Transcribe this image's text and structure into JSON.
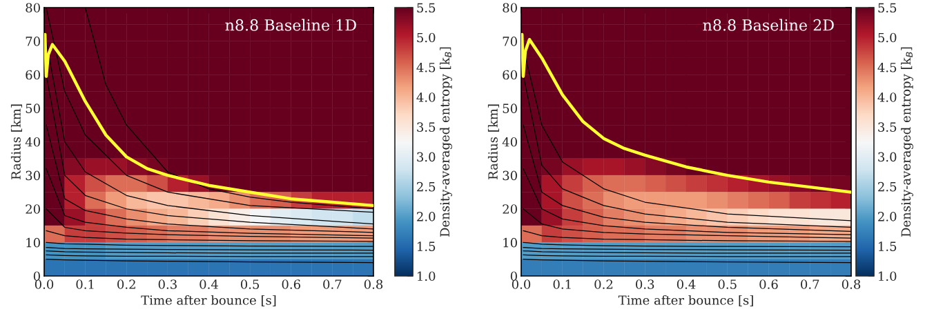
{
  "chart_data": [
    {
      "type": "heatmap",
      "title": "n8.8 Baseline 1D",
      "xlabel": "Time after bounce [s]",
      "ylabel": "Radius [km]",
      "clabel": "Density-averaged entropy [k$_{B}$]",
      "x": [
        0.025,
        0.075,
        0.125,
        0.175,
        0.225,
        0.275,
        0.325,
        0.375,
        0.425,
        0.475,
        0.525,
        0.575,
        0.625,
        0.675,
        0.725,
        0.775
      ],
      "y": [
        77.5,
        72.5,
        67.5,
        62.5,
        57.5,
        52.5,
        47.5,
        42.5,
        37.5,
        32.5,
        27.5,
        22.5,
        17.5,
        12.5,
        7.5,
        2.5
      ],
      "cells": [
        [
          5.5,
          5.5,
          5.5,
          5.5,
          5.5,
          5.5,
          5.5,
          5.5,
          5.5,
          5.5,
          5.5,
          5.5,
          5.5,
          5.5,
          5.5,
          5.5
        ],
        [
          5.5,
          5.5,
          5.5,
          5.5,
          5.5,
          5.5,
          5.5,
          5.5,
          5.5,
          5.5,
          5.5,
          5.5,
          5.5,
          5.5,
          5.5,
          5.5
        ],
        [
          5.5,
          5.5,
          5.5,
          5.5,
          5.5,
          5.5,
          5.5,
          5.5,
          5.5,
          5.5,
          5.5,
          5.5,
          5.5,
          5.5,
          5.5,
          5.5
        ],
        [
          5.5,
          5.5,
          5.5,
          5.5,
          5.5,
          5.5,
          5.5,
          5.5,
          5.5,
          5.5,
          5.5,
          5.5,
          5.5,
          5.5,
          5.5,
          5.5
        ],
        [
          5.5,
          5.5,
          5.5,
          5.5,
          5.5,
          5.5,
          5.5,
          5.5,
          5.5,
          5.5,
          5.5,
          5.5,
          5.5,
          5.5,
          5.5,
          5.5
        ],
        [
          5.5,
          5.5,
          5.5,
          5.5,
          5.5,
          5.5,
          5.5,
          5.5,
          5.5,
          5.5,
          5.5,
          5.5,
          5.5,
          5.5,
          5.5,
          5.5
        ],
        [
          5.5,
          5.5,
          5.5,
          5.5,
          5.5,
          5.5,
          5.5,
          5.5,
          5.5,
          5.5,
          5.5,
          5.5,
          5.5,
          5.5,
          5.5,
          5.5
        ],
        [
          5.5,
          5.5,
          5.5,
          5.5,
          5.5,
          5.5,
          5.5,
          5.5,
          5.5,
          5.5,
          5.5,
          5.5,
          5.5,
          5.5,
          5.5,
          5.5
        ],
        [
          5.5,
          5.5,
          5.5,
          5.5,
          5.5,
          5.5,
          5.5,
          5.5,
          5.5,
          5.5,
          5.5,
          5.5,
          5.5,
          5.5,
          5.5,
          5.5
        ],
        [
          5.5,
          5.3,
          5.2,
          5.2,
          5.3,
          5.4,
          5.5,
          5.5,
          5.5,
          5.5,
          5.5,
          5.5,
          5.5,
          5.5,
          5.5,
          5.5
        ],
        [
          5.5,
          5.0,
          4.7,
          4.5,
          4.5,
          4.7,
          5.0,
          5.2,
          5.4,
          5.5,
          5.5,
          5.5,
          5.5,
          5.5,
          5.5,
          5.5
        ],
        [
          5.5,
          5.0,
          4.5,
          4.2,
          4.0,
          3.9,
          3.9,
          4.0,
          4.1,
          4.3,
          4.5,
          4.6,
          4.8,
          5.0,
          5.0,
          5.0
        ],
        [
          5.5,
          5.2,
          4.8,
          4.5,
          4.3,
          4.1,
          4.0,
          3.8,
          3.6,
          3.4,
          3.2,
          3.0,
          2.9,
          2.8,
          2.8,
          2.7
        ],
        [
          4.5,
          4.8,
          4.8,
          4.7,
          4.6,
          4.5,
          4.4,
          4.4,
          4.3,
          4.3,
          4.3,
          4.3,
          4.2,
          4.2,
          4.2,
          4.2
        ],
        [
          1.9,
          1.9,
          1.9,
          2.0,
          2.0,
          2.0,
          2.0,
          2.0,
          2.0,
          2.0,
          2.0,
          2.0,
          2.0,
          2.0,
          2.0,
          2.0
        ],
        [
          1.6,
          1.6,
          1.6,
          1.6,
          1.6,
          1.6,
          1.6,
          1.6,
          1.6,
          1.6,
          1.6,
          1.6,
          1.6,
          1.6,
          1.6,
          1.6
        ]
      ],
      "clim": [
        1.0,
        5.5
      ],
      "cticks": [
        {
          "value": 1.0,
          "label": "1.0"
        },
        1.5,
        {
          "value": 2.0,
          "label": "2.0"
        },
        2.5,
        {
          "value": 3.0,
          "label": "3.0"
        },
        3.5,
        {
          "value": 4.0,
          "label": "4.0"
        },
        4.5,
        {
          "value": 5.0,
          "label": "5.0"
        },
        5.5
      ],
      "xlim": [
        0.0,
        0.8
      ],
      "ylim": [
        0,
        80
      ],
      "xticks": [
        {
          "value": 0.0,
          "label": "0.0"
        },
        0.1,
        0.2,
        0.3,
        0.4,
        0.5,
        0.6,
        0.7,
        0.8
      ],
      "yticks": [
        0,
        10,
        20,
        30,
        40,
        50,
        60,
        70,
        80
      ],
      "series": [
        {
          "type": "line",
          "color": "#000000",
          "x": [
            0.005,
            0.05,
            0.1,
            0.2,
            0.3,
            0.5,
            0.8
          ],
          "values": [
            5,
            4.8,
            4.7,
            4.5,
            4.4,
            4.2,
            4.0
          ]
        },
        {
          "type": "line",
          "color": "#000000",
          "x": [
            0.005,
            0.05,
            0.1,
            0.2,
            0.3,
            0.5,
            0.8
          ],
          "values": [
            6.3,
            6.1,
            6,
            5.9,
            5.9,
            5.8,
            5.8
          ]
        },
        {
          "type": "line",
          "color": "#000000",
          "x": [
            0.005,
            0.05,
            0.1,
            0.2,
            0.3,
            0.5,
            0.8
          ],
          "values": [
            7.5,
            7.2,
            7.1,
            7,
            6.9,
            6.8,
            6.8
          ]
        },
        {
          "type": "line",
          "color": "#000000",
          "x": [
            0.005,
            0.05,
            0.1,
            0.2,
            0.3,
            0.5,
            0.8
          ],
          "values": [
            8.5,
            8.2,
            8.1,
            8,
            7.9,
            7.8,
            7.7
          ]
        },
        {
          "type": "line",
          "color": "#000000",
          "x": [
            0.005,
            0.05,
            0.1,
            0.2,
            0.3,
            0.5,
            0.8
          ],
          "values": [
            10,
            9.6,
            9.5,
            9.2,
            9.1,
            8.9,
            8.8
          ]
        },
        {
          "type": "line",
          "color": "#000000",
          "x": [
            0.005,
            0.05,
            0.1,
            0.2,
            0.3,
            0.5,
            0.8
          ],
          "values": [
            13.5,
            12,
            11.5,
            11,
            10.8,
            10.5,
            10.3
          ]
        },
        {
          "type": "line",
          "color": "#000000",
          "x": [
            0.005,
            0.05,
            0.1,
            0.2,
            0.3,
            0.5,
            0.8
          ],
          "values": [
            20,
            14.5,
            13.5,
            12.8,
            12.3,
            11.8,
            11.3
          ]
        },
        {
          "type": "line",
          "color": "#000000",
          "x": [
            0.005,
            0.05,
            0.1,
            0.2,
            0.3,
            0.5,
            0.8
          ],
          "values": [
            32,
            18,
            16,
            14.5,
            13.5,
            12.7,
            12
          ]
        },
        {
          "type": "line",
          "color": "#000000",
          "x": [
            0.005,
            0.05,
            0.1,
            0.2,
            0.3,
            0.5,
            0.8
          ],
          "values": [
            45,
            23,
            19.5,
            17,
            15.5,
            14,
            13
          ]
        },
        {
          "type": "line",
          "color": "#000000",
          "x": [
            0.005,
            0.05,
            0.1,
            0.2,
            0.3,
            0.5,
            0.8
          ],
          "values": [
            60,
            30,
            24,
            20,
            18,
            16,
            14
          ]
        },
        {
          "type": "line",
          "color": "#000000",
          "x": [
            0.005,
            0.05,
            0.1,
            0.2,
            0.3,
            0.5,
            0.8
          ],
          "values": [
            70,
            40,
            31,
            24,
            21,
            18,
            15.5
          ]
        },
        {
          "type": "line",
          "color": "#000000",
          "x": [
            0.005,
            0.05,
            0.1,
            0.2,
            0.3,
            0.5,
            0.8
          ],
          "values": [
            80,
            55,
            42,
            30,
            25,
            21,
            19
          ]
        },
        {
          "type": "line",
          "color": "#000000",
          "x": [
            0.1,
            0.15,
            0.2,
            0.3,
            0.4,
            0.5,
            0.6,
            0.8
          ],
          "values": [
            80,
            57,
            45,
            31,
            26,
            23.5,
            22,
            20
          ]
        },
        {
          "type": "line",
          "color": "#ffff33",
          "x": [
            0.002,
            0.005,
            0.01,
            0.02,
            0.05,
            0.1,
            0.15,
            0.2,
            0.25,
            0.3,
            0.4,
            0.5,
            0.6,
            0.7,
            0.8
          ],
          "values": [
            72,
            59.5,
            66,
            69,
            64,
            52,
            42,
            35.5,
            32,
            30,
            27,
            25,
            23,
            22,
            21
          ]
        }
      ]
    },
    {
      "type": "heatmap",
      "title": "n8.8 Baseline 2D",
      "xlabel": "Time after bounce [s]",
      "ylabel": "Radius [km]",
      "clabel": "Density-averaged entropy [k$_{B}$]",
      "x": [
        0.025,
        0.075,
        0.125,
        0.175,
        0.225,
        0.275,
        0.325,
        0.375,
        0.425,
        0.475,
        0.525,
        0.575,
        0.625,
        0.675,
        0.725,
        0.775
      ],
      "y": [
        77.5,
        72.5,
        67.5,
        62.5,
        57.5,
        52.5,
        47.5,
        42.5,
        37.5,
        32.5,
        27.5,
        22.5,
        17.5,
        12.5,
        7.5,
        2.5
      ],
      "cells": [
        [
          5.5,
          5.5,
          5.5,
          5.5,
          5.5,
          5.5,
          5.5,
          5.5,
          5.5,
          5.5,
          5.5,
          5.5,
          5.5,
          5.5,
          5.5,
          5.5
        ],
        [
          5.5,
          5.5,
          5.5,
          5.5,
          5.5,
          5.5,
          5.5,
          5.5,
          5.5,
          5.5,
          5.5,
          5.5,
          5.5,
          5.5,
          5.5,
          5.5
        ],
        [
          5.5,
          5.5,
          5.5,
          5.5,
          5.5,
          5.5,
          5.5,
          5.5,
          5.5,
          5.5,
          5.5,
          5.5,
          5.5,
          5.5,
          5.5,
          5.5
        ],
        [
          5.5,
          5.5,
          5.5,
          5.5,
          5.5,
          5.5,
          5.5,
          5.5,
          5.5,
          5.5,
          5.5,
          5.5,
          5.5,
          5.5,
          5.5,
          5.5
        ],
        [
          5.5,
          5.5,
          5.5,
          5.5,
          5.5,
          5.5,
          5.5,
          5.5,
          5.5,
          5.5,
          5.5,
          5.5,
          5.5,
          5.5,
          5.5,
          5.5
        ],
        [
          5.5,
          5.5,
          5.5,
          5.5,
          5.5,
          5.5,
          5.5,
          5.5,
          5.5,
          5.5,
          5.5,
          5.5,
          5.5,
          5.5,
          5.5,
          5.5
        ],
        [
          5.5,
          5.5,
          5.5,
          5.5,
          5.5,
          5.5,
          5.5,
          5.5,
          5.5,
          5.5,
          5.5,
          5.5,
          5.5,
          5.5,
          5.5,
          5.5
        ],
        [
          5.5,
          5.5,
          5.5,
          5.5,
          5.5,
          5.5,
          5.5,
          5.5,
          5.5,
          5.5,
          5.5,
          5.5,
          5.5,
          5.5,
          5.5,
          5.5
        ],
        [
          5.5,
          5.5,
          5.5,
          5.5,
          5.5,
          5.5,
          5.5,
          5.5,
          5.5,
          5.5,
          5.5,
          5.5,
          5.5,
          5.5,
          5.5,
          5.5
        ],
        [
          5.5,
          5.4,
          5.2,
          5.1,
          5.1,
          5.2,
          5.3,
          5.4,
          5.5,
          5.5,
          5.5,
          5.5,
          5.5,
          5.5,
          5.5,
          5.5
        ],
        [
          5.5,
          5.1,
          4.8,
          4.6,
          4.5,
          4.5,
          4.6,
          4.7,
          4.8,
          4.9,
          5.0,
          5.1,
          5.2,
          5.3,
          5.4,
          5.4
        ],
        [
          5.5,
          5.1,
          4.7,
          4.5,
          4.3,
          4.2,
          4.2,
          4.2,
          4.2,
          4.3,
          4.4,
          4.5,
          4.6,
          4.8,
          4.9,
          5.0
        ],
        [
          5.5,
          5.2,
          4.8,
          4.6,
          4.4,
          4.3,
          4.2,
          4.1,
          4.0,
          3.9,
          3.8,
          3.7,
          3.6,
          3.6,
          3.5,
          3.5
        ],
        [
          4.5,
          4.8,
          4.7,
          4.6,
          4.5,
          4.5,
          4.4,
          4.4,
          4.3,
          4.3,
          4.3,
          4.2,
          4.2,
          4.2,
          4.1,
          4.1
        ],
        [
          2.0,
          2.0,
          2.0,
          2.0,
          2.0,
          2.0,
          2.0,
          2.0,
          2.0,
          2.0,
          2.0,
          2.0,
          2.0,
          2.0,
          2.0,
          2.0
        ],
        [
          1.7,
          1.7,
          1.7,
          1.7,
          1.7,
          1.7,
          1.7,
          1.7,
          1.7,
          1.7,
          1.7,
          1.7,
          1.7,
          1.7,
          1.7,
          1.7
        ]
      ],
      "clim": [
        1.0,
        5.5
      ],
      "cticks": [
        {
          "value": 1.0,
          "label": "1.0"
        },
        1.5,
        {
          "value": 2.0,
          "label": "2.0"
        },
        2.5,
        {
          "value": 3.0,
          "label": "3.0"
        },
        3.5,
        {
          "value": 4.0,
          "label": "4.0"
        },
        4.5,
        {
          "value": 5.0,
          "label": "5.0"
        },
        5.5
      ],
      "xlim": [
        0.0,
        0.8
      ],
      "ylim": [
        0,
        80
      ],
      "xticks": [
        {
          "value": 0.0,
          "label": "0.0"
        },
        0.1,
        0.2,
        0.3,
        0.4,
        0.5,
        0.6,
        0.7,
        0.8
      ],
      "yticks": [
        0,
        10,
        20,
        30,
        40,
        50,
        60,
        70,
        80
      ],
      "series": [
        {
          "type": "line",
          "color": "#000000",
          "x": [
            0.005,
            0.05,
            0.1,
            0.2,
            0.3,
            0.5,
            0.8
          ],
          "values": [
            5,
            4.8,
            4.7,
            4.5,
            4.4,
            4.2,
            4.0
          ]
        },
        {
          "type": "line",
          "color": "#000000",
          "x": [
            0.005,
            0.05,
            0.1,
            0.2,
            0.3,
            0.5,
            0.8
          ],
          "values": [
            6.3,
            6.1,
            6,
            5.9,
            5.9,
            5.8,
            5.8
          ]
        },
        {
          "type": "line",
          "color": "#000000",
          "x": [
            0.005,
            0.05,
            0.1,
            0.2,
            0.3,
            0.5,
            0.8
          ],
          "values": [
            7.5,
            7.2,
            7.1,
            7,
            6.9,
            6.8,
            6.8
          ]
        },
        {
          "type": "line",
          "color": "#000000",
          "x": [
            0.005,
            0.05,
            0.1,
            0.2,
            0.3,
            0.5,
            0.8
          ],
          "values": [
            8.5,
            8.2,
            8.1,
            8,
            7.9,
            7.8,
            7.7
          ]
        },
        {
          "type": "line",
          "color": "#000000",
          "x": [
            0.005,
            0.05,
            0.1,
            0.2,
            0.3,
            0.5,
            0.8
          ],
          "values": [
            10,
            9.5,
            9.3,
            9,
            8.9,
            8.8,
            8.7
          ]
        },
        {
          "type": "line",
          "color": "#000000",
          "x": [
            0.005,
            0.05,
            0.1,
            0.2,
            0.3,
            0.5,
            0.8
          ],
          "values": [
            13.5,
            12,
            11.5,
            11,
            10.8,
            10.5,
            10.3
          ]
        },
        {
          "type": "line",
          "color": "#000000",
          "x": [
            0.005,
            0.05,
            0.1,
            0.2,
            0.3,
            0.5,
            0.8
          ],
          "values": [
            20,
            15.5,
            14,
            13,
            12.5,
            12,
            11.3
          ]
        },
        {
          "type": "line",
          "color": "#000000",
          "x": [
            0.005,
            0.05,
            0.1,
            0.2,
            0.3,
            0.5,
            0.8
          ],
          "values": [
            32,
            20,
            17,
            15,
            14,
            13,
            12.3
          ]
        },
        {
          "type": "line",
          "color": "#000000",
          "x": [
            0.005,
            0.05,
            0.1,
            0.2,
            0.3,
            0.5,
            0.8
          ],
          "values": [
            45,
            25,
            21,
            17.5,
            16,
            14.5,
            13.3
          ]
        },
        {
          "type": "line",
          "color": "#000000",
          "x": [
            0.005,
            0.05,
            0.1,
            0.2,
            0.3,
            0.5,
            0.8
          ],
          "values": [
            60,
            33,
            26,
            21,
            18.5,
            16,
            14.5
          ]
        },
        {
          "type": "line",
          "color": "#000000",
          "x": [
            0.005,
            0.05,
            0.1,
            0.2,
            0.3,
            0.5,
            0.8
          ],
          "values": [
            68,
            45,
            34,
            26,
            22,
            18.5,
            16.5
          ]
        },
        {
          "type": "line",
          "color": "#ffff33",
          "x": [
            0.002,
            0.005,
            0.01,
            0.02,
            0.05,
            0.1,
            0.15,
            0.2,
            0.25,
            0.3,
            0.4,
            0.5,
            0.6,
            0.7,
            0.8
          ],
          "values": [
            72,
            59.5,
            67,
            70.5,
            65,
            54,
            46,
            41,
            38,
            36,
            32.5,
            30,
            28,
            26.5,
            25
          ]
        }
      ]
    }
  ]
}
